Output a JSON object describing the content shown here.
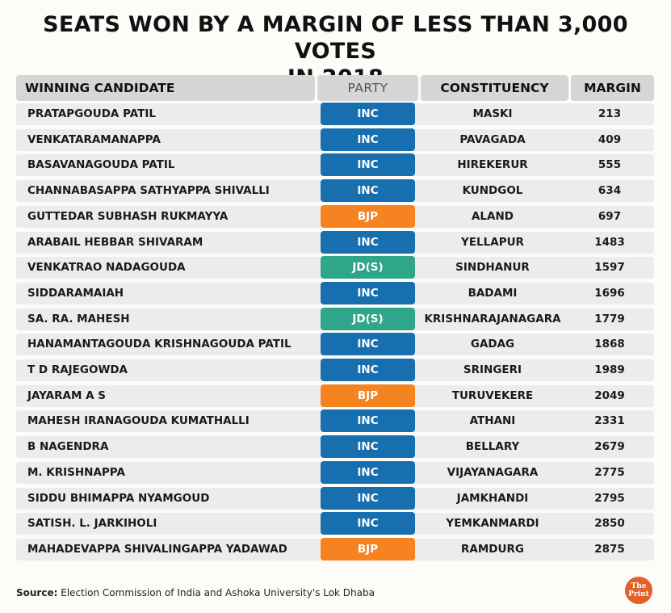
{
  "title_line1": "SEATS WON BY A MARGIN OF LESS THAN 3,000 VOTES",
  "title_line2": "IN 2018",
  "headers": {
    "candidate": "WINNING CANDIDATE",
    "party": "PARTY",
    "constituency": "CONSTITUENCY",
    "margin": "MARGIN"
  },
  "party_colors": {
    "INC": "#176faf",
    "BJP": "#f5831f",
    "JD(S)": "#2fa58a"
  },
  "chart_data": {
    "type": "table",
    "title": "SEATS WON BY A MARGIN OF LESS THAN 3,000 VOTES IN 2018",
    "columns": [
      "WINNING CANDIDATE",
      "PARTY",
      "CONSTITUENCY",
      "MARGIN"
    ],
    "rows": [
      {
        "candidate": "PRATAPGOUDA PATIL",
        "party": "INC",
        "constituency": "MASKI",
        "margin": 213
      },
      {
        "candidate": "VENKATARAMANAPPA",
        "party": "INC",
        "constituency": "PAVAGADA",
        "margin": 409
      },
      {
        "candidate": "BASAVANAGOUDA PATIL",
        "party": "INC",
        "constituency": "HIREKERUR",
        "margin": 555
      },
      {
        "candidate": "CHANNABASAPPA SATHYAPPA SHIVALLI",
        "party": "INC",
        "constituency": "KUNDGOL",
        "margin": 634
      },
      {
        "candidate": "GUTTEDAR SUBHASH RUKMAYYA",
        "party": "BJP",
        "constituency": "ALAND",
        "margin": 697
      },
      {
        "candidate": "ARABAIL HEBBAR SHIVARAM",
        "party": "INC",
        "constituency": "YELLAPUR",
        "margin": 1483
      },
      {
        "candidate": "VENKATRAO NADAGOUDA",
        "party": "JD(S)",
        "constituency": "SINDHANUR",
        "margin": 1597
      },
      {
        "candidate": "SIDDARAMAIAH",
        "party": "INC",
        "constituency": "BADAMI",
        "margin": 1696
      },
      {
        "candidate": "SA. RA. MAHESH",
        "party": "JD(S)",
        "constituency": "KRISHNARAJANAGARA",
        "margin": 1779
      },
      {
        "candidate": "HANAMANTAGOUDA KRISHNAGOUDA PATIL",
        "party": "INC",
        "constituency": "GADAG",
        "margin": 1868
      },
      {
        "candidate": "T D RAJEGOWDA",
        "party": "INC",
        "constituency": "SRINGERI",
        "margin": 1989
      },
      {
        "candidate": "JAYARAM A S",
        "party": "BJP",
        "constituency": "TURUVEKERE",
        "margin": 2049
      },
      {
        "candidate": "MAHESH IRANAGOUDA KUMATHALLI",
        "party": "INC",
        "constituency": "ATHANI",
        "margin": 2331
      },
      {
        "candidate": "B NAGENDRA",
        "party": "INC",
        "constituency": "BELLARY",
        "margin": 2679
      },
      {
        "candidate": "M. KRISHNAPPA",
        "party": "INC",
        "constituency": "VIJAYANAGARA",
        "margin": 2775
      },
      {
        "candidate": "SIDDU BHIMAPPA NYAMGOUD",
        "party": "INC",
        "constituency": "JAMKHANDI",
        "margin": 2795
      },
      {
        "candidate": "SATISH. L. JARKIHOLI",
        "party": "INC",
        "constituency": "YEMKANMARDI",
        "margin": 2850
      },
      {
        "candidate": "MAHADEVAPPA SHIVALINGAPPA YADAWAD",
        "party": "BJP",
        "constituency": "RAMDURG",
        "margin": 2875
      }
    ]
  },
  "source_label": "Source:",
  "source_text": "Election Commission of India and Ashoka University's Lok Dhaba",
  "logo_text_1": "The",
  "logo_text_2": "Print"
}
